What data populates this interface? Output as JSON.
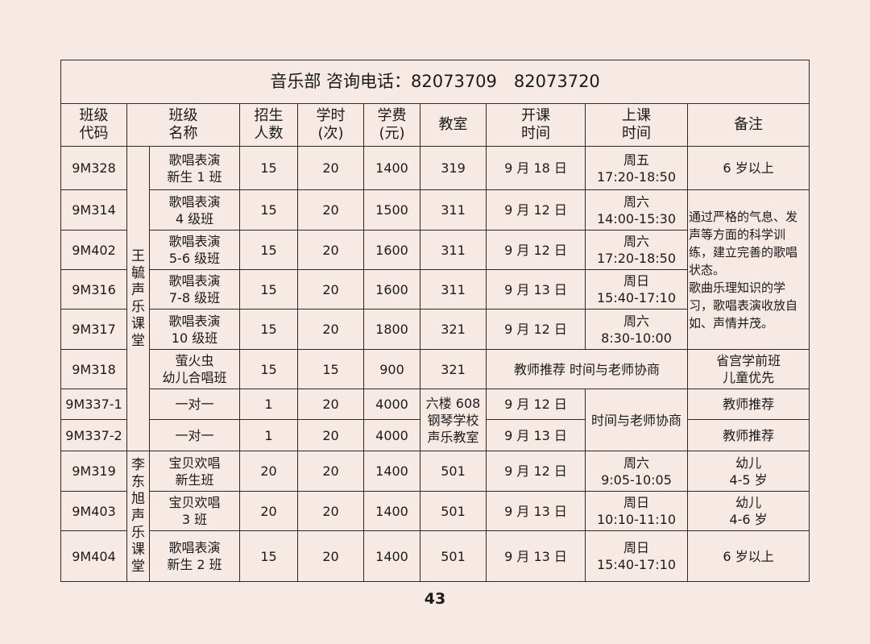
{
  "title": "音乐部 咨询电话：82073709　82073720",
  "headers": [
    "班级\n代码",
    "班级\n名称",
    "招生\n人数",
    "学时\n(次)",
    "学费\n(元)",
    "教室",
    "开课\n时间",
    "上课\n时间",
    "备注"
  ],
  "teachers": [
    "王\n毓\n声\n乐\n课\n堂",
    "李\n东\n旭\n声\n乐\n课\n堂"
  ],
  "rows": [
    {
      "code": "9M328",
      "name": "歌唱表演\n新生 1 班",
      "count": "15",
      "hours": "20",
      "fee": "1400",
      "room": "319",
      "start": "9 月 18 日",
      "time": "周五\n17:20-18:50",
      "note": "6 岁以上"
    },
    {
      "code": "9M314",
      "name": "歌唱表演\n4 级班",
      "count": "15",
      "hours": "20",
      "fee": "1500",
      "room": "311",
      "start": "9 月 12 日",
      "time": "周六\n14:00-15:30",
      "note": "通过严格的气息、发声等方面的科学训练，建立完善的歌唱状态。\n歌曲乐理知识的学习，歌唱表演收放自如、声情并茂。"
    },
    {
      "code": "9M402",
      "name": "歌唱表演\n5-6 级班",
      "count": "15",
      "hours": "20",
      "fee": "1600",
      "room": "311",
      "start": "9 月 12 日",
      "time": "周六\n17:20-18:50"
    },
    {
      "code": "9M316",
      "name": "歌唱表演\n7-8 级班",
      "count": "15",
      "hours": "20",
      "fee": "1600",
      "room": "311",
      "start": "9 月 13 日",
      "time": "周日\n15:40-17:10"
    },
    {
      "code": "9M317",
      "name": "歌唱表演\n10 级班",
      "count": "15",
      "hours": "20",
      "fee": "1800",
      "room": "321",
      "start": "9 月 12 日",
      "time": "周六\n8:30-10:00"
    },
    {
      "code": "9M318",
      "name": "萤火虫\n幼儿合唱班",
      "count": "15",
      "hours": "15",
      "fee": "900",
      "room": "321",
      "start": "教师推荐 时间与老师协商",
      "note": "省宫学前班\n儿童优先"
    },
    {
      "code": "9M337-1",
      "name": "一对一",
      "count": "1",
      "hours": "20",
      "fee": "4000",
      "room": "六楼 608\n钢琴学校\n声乐教室",
      "start": "9 月 12 日",
      "time": "时间与老师协商",
      "note": "教师推荐"
    },
    {
      "code": "9M337-2",
      "name": "一对一",
      "count": "1",
      "hours": "20",
      "fee": "4000",
      "start": "9 月 13 日",
      "note": "教师推荐"
    },
    {
      "code": "9M319",
      "name": "宝贝欢唱\n新生班",
      "count": "20",
      "hours": "20",
      "fee": "1400",
      "room": "501",
      "start": "9 月 12 日",
      "time": "周六\n9:05-10:05",
      "note": "幼儿\n4-5 岁"
    },
    {
      "code": "9M403",
      "name": "宝贝欢唱\n3 班",
      "count": "20",
      "hours": "20",
      "fee": "1400",
      "room": "501",
      "start": "9 月 13 日",
      "time": "周日\n10:10-11:10",
      "note": "幼儿\n4-6 岁"
    },
    {
      "code": "9M404",
      "name": "歌唱表演\n新生 2 班",
      "count": "15",
      "hours": "20",
      "fee": "1400",
      "room": "501",
      "start": "9 月 13 日",
      "time": "周日\n15:40-17:10",
      "note": "6 岁以上"
    }
  ],
  "page_number": "43"
}
